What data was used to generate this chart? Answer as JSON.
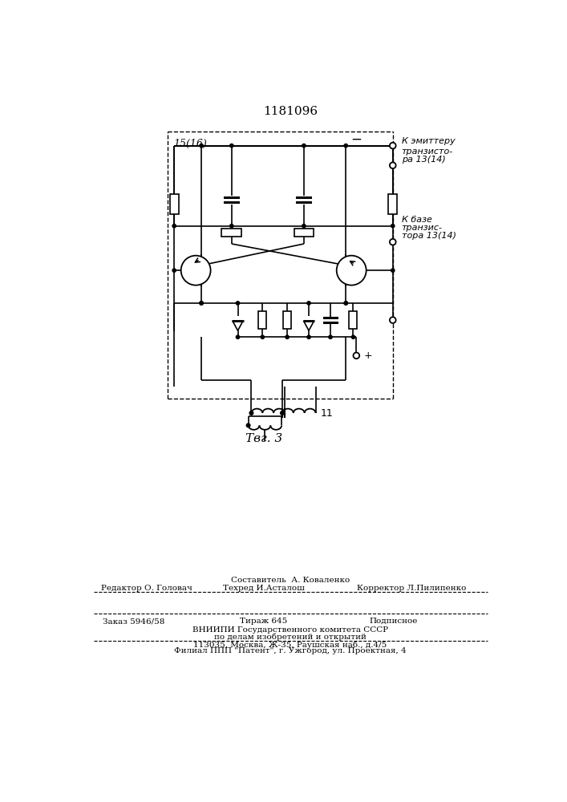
{
  "title": "1181096",
  "fig_label": "Τвг. 3",
  "bg_color": "#ffffff",
  "line_color": "#000000",
  "box_label": "15(16)",
  "t1_line1": "К эмиттеру",
  "t1_line2": "транзисто-",
  "t1_line3": "ра 13(14)",
  "t2_line1": "К базе",
  "t2_line2": "транзис-",
  "t2_line3": "тора 13(14)",
  "plus_label": "+",
  "minus_label": "−",
  "transformer_label": "11",
  "bt1": "Составитель  А. Коваленко",
  "bt2_left": "Редактор О. Головач",
  "bt2_mid": "Техред И.Асталош",
  "bt2_right": "Корректор Л.Пилипенко",
  "bt3_left": "Заказ 5946/58",
  "bt3_mid": "Тираж 645",
  "bt3_right": "Подписное",
  "bt4": "ВНИИПИ Государственного комитета СССР",
  "bt5": "по делам изобретений и открытий",
  "bt6": "113035, Москва, Ж-35, Раушская наб., д.4/5",
  "bt7": "Филиал ППП \"Патент\", г. Ужгород, ул. Проектная, 4"
}
